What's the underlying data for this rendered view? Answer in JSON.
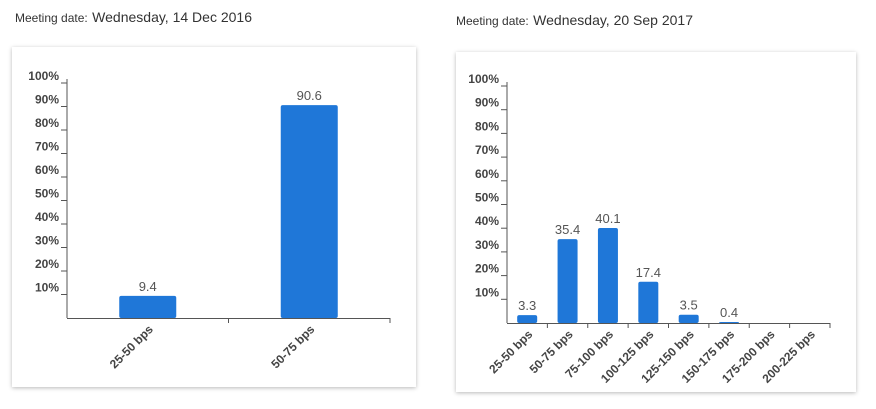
{
  "panels": [
    {
      "meeting_label": "Meeting date:",
      "meeting_date": "Wednesday, 14 Dec 2016"
    },
    {
      "meeting_label": "Meeting date:",
      "meeting_date": "Wednesday, 20 Sep 2017"
    }
  ],
  "colors": {
    "bar": "#1f77d8",
    "axis": "#555555",
    "text": "#444444"
  },
  "chart_data": [
    {
      "type": "bar",
      "title": "",
      "xlabel": "",
      "ylabel": "",
      "categories": [
        "25-50 bps",
        "50-75 bps"
      ],
      "values": [
        9.4,
        90.6
      ],
      "data_labels": [
        "9.4",
        "90.6"
      ],
      "ylim": [
        0,
        100
      ],
      "yticks": [
        "10%",
        "20%",
        "30%",
        "40%",
        "50%",
        "60%",
        "70%",
        "80%",
        "90%",
        "100%"
      ],
      "grid": false,
      "legend": "none"
    },
    {
      "type": "bar",
      "title": "",
      "xlabel": "",
      "ylabel": "",
      "categories": [
        "25-50 bps",
        "50-75 bps",
        "75-100 bps",
        "100-125 bps",
        "125-150 bps",
        "150-175 bps",
        "175-200 bps",
        "200-225 bps"
      ],
      "values": [
        3.3,
        35.4,
        40.1,
        17.4,
        3.5,
        0.4,
        0,
        0
      ],
      "data_labels": [
        "3.3",
        "35.4",
        "40.1",
        "17.4",
        "3.5",
        "0.4",
        "",
        ""
      ],
      "ylim": [
        0,
        100
      ],
      "yticks": [
        "10%",
        "20%",
        "30%",
        "40%",
        "50%",
        "60%",
        "70%",
        "80%",
        "90%",
        "100%"
      ],
      "grid": false,
      "legend": "none"
    }
  ]
}
